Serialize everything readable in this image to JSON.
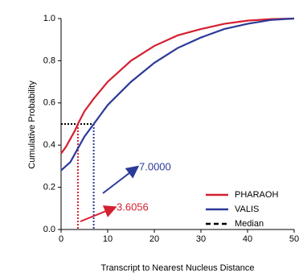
{
  "chart_data": {
    "type": "line",
    "xlabel": "Transcript to Nearest Nucleus Distance",
    "ylabel": "Cumulative Probability",
    "xlim": [
      0,
      50
    ],
    "xticks": [
      0,
      10,
      20,
      30,
      40,
      50
    ],
    "ylim": [
      0,
      1
    ],
    "yticks": [
      {
        "value": 0,
        "label": "0.0"
      },
      {
        "value": 0.2,
        "label": "0.2"
      },
      {
        "value": 0.4,
        "label": "0.4"
      },
      {
        "value": 0.6,
        "label": "0.6"
      },
      {
        "value": 0.8,
        "label": "0.8"
      },
      {
        "value": 1,
        "label": "1.0"
      }
    ],
    "grid": false,
    "legend": "lower right",
    "series": [
      {
        "name": "PHARAOH",
        "color": "#d42031",
        "x": [
          0,
          1,
          2,
          3,
          3.6056,
          5,
          7,
          10,
          15,
          20,
          25,
          30,
          35,
          40,
          45,
          50
        ],
        "values": [
          0.36,
          0.39,
          0.43,
          0.47,
          0.5,
          0.56,
          0.62,
          0.7,
          0.8,
          0.87,
          0.92,
          0.95,
          0.975,
          0.99,
          0.997,
          1.0
        ]
      },
      {
        "name": "VALIS",
        "color": "#2b3a98",
        "x": [
          0,
          2,
          3,
          4,
          5,
          7,
          10,
          15,
          20,
          25,
          30,
          35,
          40,
          45,
          50
        ],
        "values": [
          0.28,
          0.32,
          0.36,
          0.4,
          0.44,
          0.5,
          0.59,
          0.7,
          0.79,
          0.86,
          0.91,
          0.95,
          0.975,
          0.993,
          1.0
        ]
      }
    ],
    "median_label": "Median",
    "median_y": 0.5,
    "medians": [
      {
        "series": 0,
        "value": 3.6056
      },
      {
        "series": 1,
        "value": 7,
        "value_label": "7.0000"
      }
    ]
  }
}
